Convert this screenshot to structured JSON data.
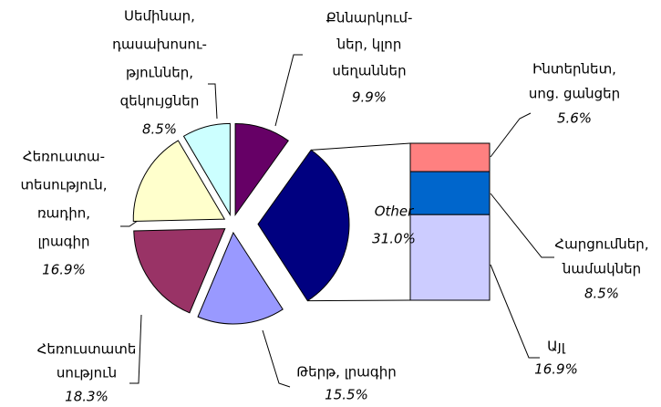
{
  "chart_data": {
    "type": "pie-of-bar",
    "categories": [
      [
        "Քննարկում-",
        "ներ, կլոր",
        "սեղաններ"
      ],
      [
        "Other"
      ],
      [
        "Թերթ, լրագիր"
      ],
      [
        "Հեռուստատե",
        "սություն"
      ],
      [
        "Հեռուստա-",
        "տեսություն,",
        "ռադիո,",
        "լրագիր"
      ],
      [
        "Սեմինար,",
        "դասախոսու-",
        "թյուններ,",
        "զեկույցներ"
      ]
    ],
    "values": [
      9.9,
      31.0,
      15.5,
      18.3,
      16.9,
      8.5
    ],
    "value_labels": [
      "9.9%",
      "31.0%",
      "15.5%",
      "18.3%",
      "16.9%",
      "8.5%"
    ],
    "colors": [
      "#660066",
      "#000080",
      "#9999ff",
      "#993366",
      "#ffffcc",
      "#ccffff"
    ],
    "bar": {
      "categories": [
        [
          "Ինտերնետ,",
          "սոց. ցանցեր"
        ],
        [
          "Հարցումներ,",
          "նամակներ"
        ],
        [
          "Այլ"
        ]
      ],
      "values": [
        5.6,
        8.5,
        16.9
      ],
      "value_labels": [
        "5.6%",
        "8.5%",
        "16.9%"
      ],
      "colors": [
        "#ff8080",
        "#0066cc",
        "#ccccff"
      ]
    }
  }
}
